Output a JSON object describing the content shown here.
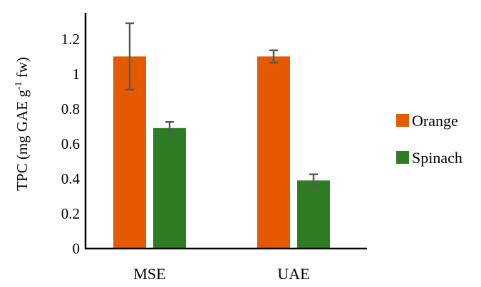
{
  "chart_data": {
    "type": "bar",
    "categories": [
      "MSE",
      "UAE"
    ],
    "series": [
      {
        "name": "Orange",
        "color": "#e35a00",
        "values": [
          1.1,
          1.1
        ],
        "errors": [
          0.19,
          0.035
        ]
      },
      {
        "name": "Spinach",
        "color": "#2e7d25",
        "values": [
          0.69,
          0.39
        ],
        "errors": [
          0.035,
          0.035
        ]
      }
    ],
    "yticks": [
      {
        "value": 0,
        "label": "0"
      },
      {
        "value": 0.2,
        "label": "0.2"
      },
      {
        "value": 0.4,
        "label": "0.4"
      },
      {
        "value": 0.6,
        "label": "0.6"
      },
      {
        "value": 0.8,
        "label": "0.8"
      },
      {
        "value": 1.0,
        "label": "1"
      },
      {
        "value": 1.2,
        "label": "1.2"
      }
    ],
    "ylim": [
      0,
      1.35
    ],
    "ylabel": {
      "prefix": "TPC (mg GAE g",
      "superscript": "-1",
      "suffix": " fw)"
    },
    "xlabel": "",
    "title": "",
    "legend": "right",
    "grid": false
  }
}
